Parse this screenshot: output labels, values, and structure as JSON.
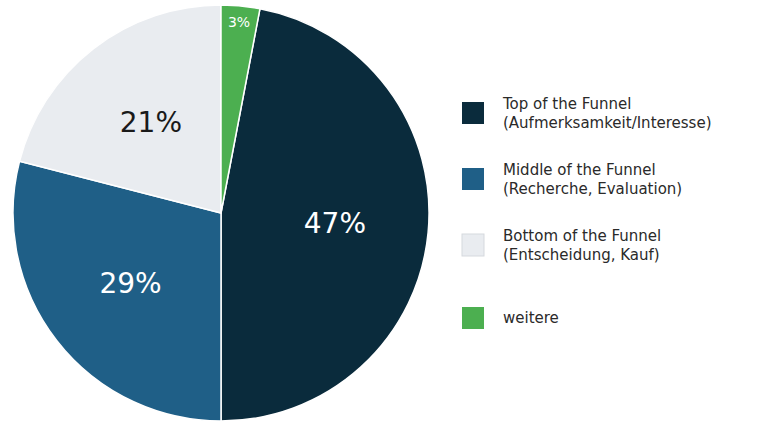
{
  "chart_data": {
    "type": "pie",
    "categories": [
      "Top of the Funnel (Aufmerksamkeit/Interesse)",
      "Middle of the Funnel (Recherche, Evaluation)",
      "Bottom of the Funnel (Entscheidung, Kauf)",
      "weitere"
    ],
    "values": [
      47,
      29,
      21,
      3
    ],
    "value_labels": [
      "47%",
      "29%",
      "21%",
      "3%"
    ],
    "colors": [
      "#0a2b3c",
      "#1f5f87",
      "#e9ecf0",
      "#4caf50"
    ],
    "data_labels": true,
    "legend": "right"
  }
}
